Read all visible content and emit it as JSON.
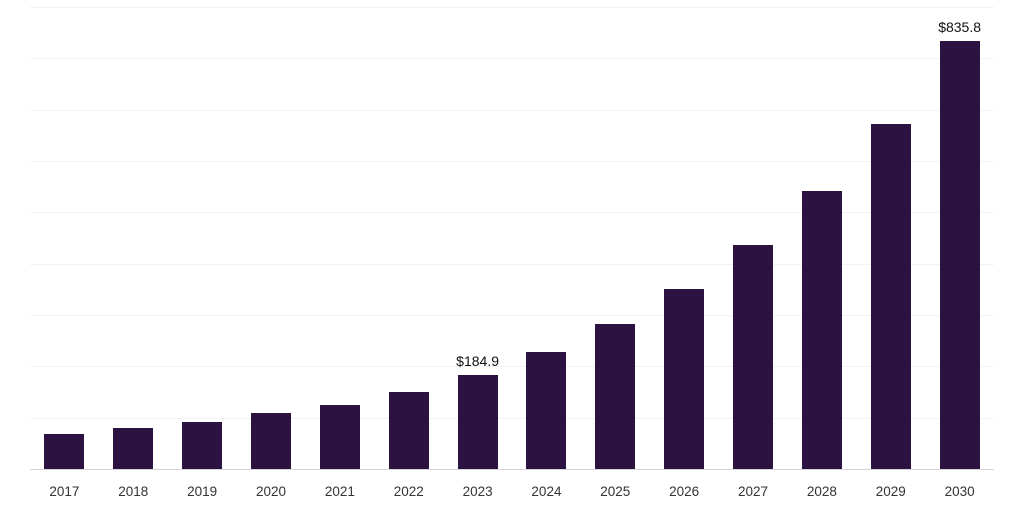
{
  "chart_data": {
    "type": "bar",
    "title": "",
    "xlabel": "",
    "ylabel": "",
    "categories": [
      "2017",
      "2018",
      "2019",
      "2020",
      "2021",
      "2022",
      "2023",
      "2024",
      "2025",
      "2026",
      "2027",
      "2028",
      "2029",
      "2030"
    ],
    "values": [
      70.9,
      81.2,
      94.0,
      110.5,
      127.3,
      152.6,
      184.9,
      229.4,
      284.6,
      353.0,
      437.9,
      543.2,
      673.8,
      835.8
    ],
    "annotations": [
      {
        "index": 6,
        "text": "$184.9"
      },
      {
        "index": 13,
        "text": "$835.8"
      }
    ],
    "ylim": [
      0,
      900
    ],
    "y_grid_step": 100,
    "grid": "horizontal",
    "legend": "none",
    "bar_color": "#2c1240",
    "background": "#ffffff",
    "gridline_color": "#f2f2f2",
    "axis_line_color": "#d4d4d4",
    "value_label_color": "#111111",
    "tick_label_color": "#333333"
  }
}
